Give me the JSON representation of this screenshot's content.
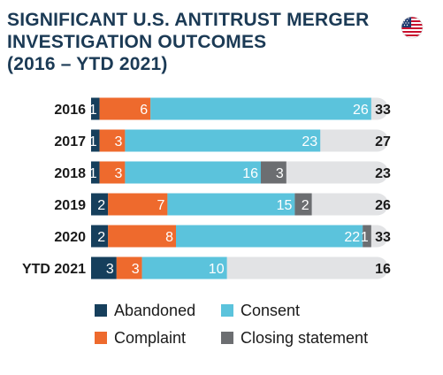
{
  "chart_data": {
    "type": "bar",
    "orientation": "horizontal",
    "stacked": true,
    "title": [
      "SIGNIFICANT U.S. ANTITRUST MERGER",
      "INVESTIGATION OUTCOMES",
      "(2016 – YTD 2021)"
    ],
    "categories": [
      "2016",
      "2017",
      "2018",
      "2019",
      "2020",
      "YTD 2021"
    ],
    "series": [
      {
        "name": "Abandoned",
        "values": [
          1,
          1,
          1,
          2,
          2,
          3
        ],
        "labels": [
          "1",
          "1",
          "1",
          "2",
          "2",
          "3"
        ]
      },
      {
        "name": "Complaint",
        "values": [
          6,
          3,
          3,
          7,
          8,
          3
        ],
        "labels": [
          "6",
          "3",
          "3",
          "7",
          "8",
          "3"
        ]
      },
      {
        "name": "Consent",
        "values": [
          26,
          23,
          16,
          15,
          22,
          10
        ],
        "labels": [
          "26",
          "23",
          "16",
          "15",
          "22",
          "10"
        ]
      },
      {
        "name": "Closing statement",
        "values": [
          0,
          0,
          3,
          2,
          1,
          0
        ],
        "labels": [
          "",
          "",
          "3",
          "2",
          "1",
          ""
        ]
      }
    ],
    "totals": [
      "33",
      "27",
      "23",
      "26",
      "33",
      "16"
    ],
    "xlim": [
      0,
      35
    ],
    "legend_position": "bottom",
    "grid": false
  },
  "colors": {
    "title": "#1b3a55",
    "text": "#1a1a1a",
    "track": "#e2e3e5",
    "series": [
      "#163f5c",
      "#ee6a2d",
      "#5bc3dc",
      "#6c6e71"
    ]
  },
  "flag_icon": "us-flag-icon"
}
